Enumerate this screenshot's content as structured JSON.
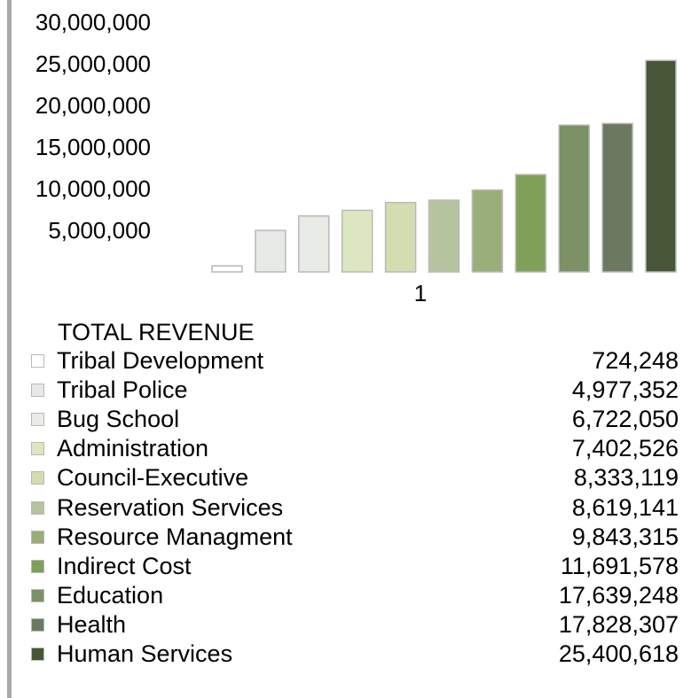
{
  "chart_data": {
    "type": "bar",
    "title": "TOTAL REVENUE",
    "categories": [
      "1"
    ],
    "yticks": [
      "5,000,000",
      "10,000,000",
      "15,000,000",
      "20,000,000",
      "25,000,000",
      "30,000,000"
    ],
    "ylim": [
      0,
      30000000
    ],
    "legend_position": "bottom",
    "grid": false,
    "series": [
      {
        "name": "Tribal Development",
        "value": 724248,
        "value_label": "724,248",
        "color": "#ffffff"
      },
      {
        "name": "Tribal Police",
        "value": 4977352,
        "value_label": "4,977,352",
        "color": "#e6e9e6"
      },
      {
        "name": "Bug School",
        "value": 6722050,
        "value_label": "6,722,050",
        "color": "#e9ebe6"
      },
      {
        "name": "Administration",
        "value": 7402526,
        "value_label": "7,402,526",
        "color": "#dce6c0"
      },
      {
        "name": "Council-Executive",
        "value": 8333119,
        "value_label": "8,333,119",
        "color": "#d2deb0"
      },
      {
        "name": "Reservation Services",
        "value": 8619141,
        "value_label": "8,619,141",
        "color": "#b5c49f"
      },
      {
        "name": "Resource Managment",
        "value": 9843315,
        "value_label": "9,843,315",
        "color": "#9aae7a"
      },
      {
        "name": "Indirect Cost",
        "value": 11691578,
        "value_label": "11,691,578",
        "color": "#7fa058"
      },
      {
        "name": "Education",
        "value": 17639248,
        "value_label": "17,639,248",
        "color": "#7c9165"
      },
      {
        "name": "Health",
        "value": 17828307,
        "value_label": "17,828,307",
        "color": "#6b7a5f"
      },
      {
        "name": "Human Services",
        "value": 25400618,
        "value_label": "25,400,618",
        "color": "#465637"
      }
    ]
  }
}
